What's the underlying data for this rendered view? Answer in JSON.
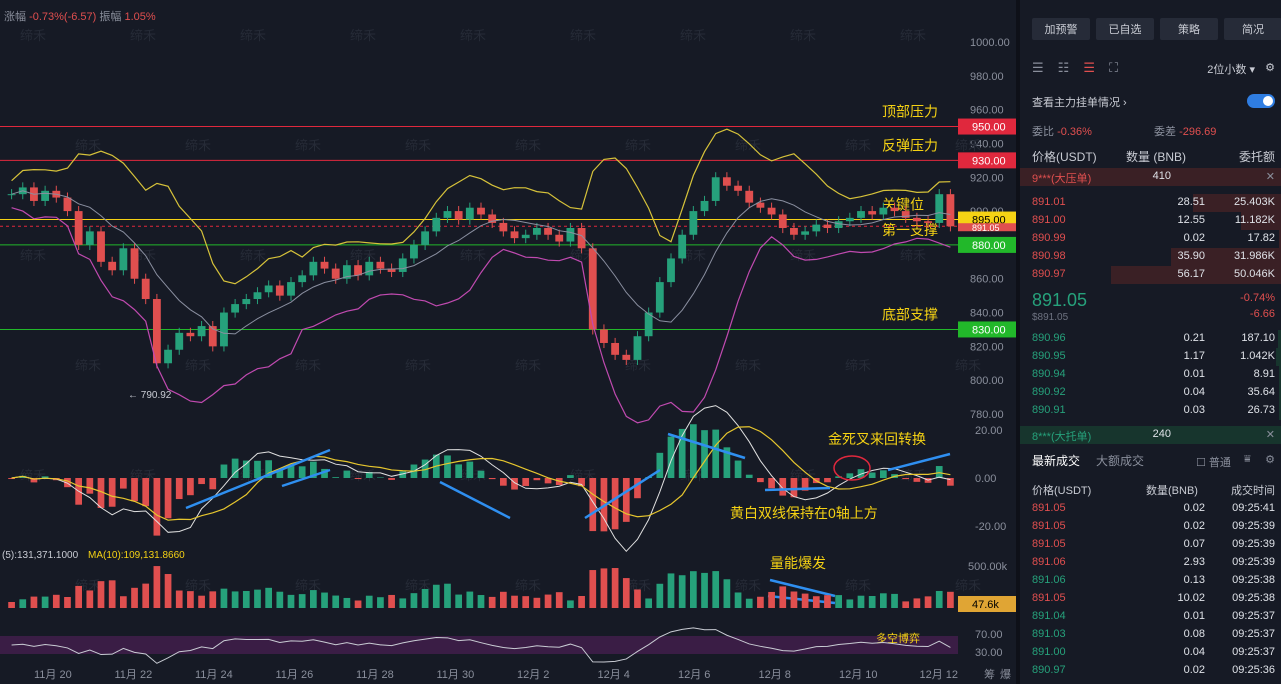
{
  "header": {
    "change_label": "涨幅",
    "change_value": "-0.73%(-6.57)",
    "amplitude_label": "振幅",
    "amplitude_value": "1.05%"
  },
  "watermark": "缔禾",
  "y_ticks": [
    "1000.00",
    "980.00",
    "960.00",
    "940.00",
    "920.00",
    "900.00",
    "880.00",
    "860.00",
    "840.00",
    "820.00",
    "800.00",
    "780.00"
  ],
  "price_levels": [
    {
      "label": "950.00",
      "annotation": "顶部压力",
      "color": "#e0283d",
      "value": 950
    },
    {
      "label": "930.00",
      "annotation": "反弹压力",
      "color": "#e0283d",
      "value": 930
    },
    {
      "label": "895.00",
      "annotation": "关键位",
      "color": "#f5d214",
      "value": 895
    },
    {
      "label": "880.00",
      "annotation": "第一支撑",
      "color": "#22b82a",
      "value": 880
    },
    {
      "label": "830.00",
      "annotation": "底部支撑",
      "color": "#22b82a",
      "value": 830
    }
  ],
  "current_price_label": "891.05",
  "low_marker": "← 790.92",
  "macd_ticks": [
    "20.00",
    "0.00",
    "-20.00"
  ],
  "macd_notes": {
    "cross": "金死叉来回转换",
    "above_zero": "黄白双线保持在0轴上方"
  },
  "volume": {
    "ma5": "(5):131,371.1000",
    "ma10": "MA(10):109,131.8660",
    "tick": "500.00k",
    "current": "47.6k",
    "note": "量能爆发"
  },
  "rsi": {
    "ticks": [
      "70.00",
      "30.00"
    ],
    "note": "多空博弈"
  },
  "x_labels": [
    "11月 20",
    "11月 22",
    "11月 24",
    "11月 26",
    "11月 28",
    "11月 30",
    "12月 2",
    "12月 4",
    "12月 6",
    "12月 8",
    "12月 10",
    "12月 12"
  ],
  "bottom_right": [
    "筹",
    "爆"
  ],
  "chart_data": {
    "type": "candlestick",
    "title": "",
    "ylim": [
      780,
      1000
    ],
    "series": [
      {
        "name": "price",
        "values": [
          910,
          914,
          906,
          912,
          908,
          900,
          880,
          888,
          870,
          865,
          878,
          860,
          848,
          810,
          818,
          828,
          826,
          832,
          820,
          840,
          845,
          848,
          852,
          856,
          850,
          858,
          862,
          870,
          866,
          860,
          868,
          862,
          870,
          866,
          864,
          872,
          880,
          888,
          896,
          900,
          895,
          902,
          898,
          893,
          888,
          884,
          886,
          890,
          886,
          882,
          890,
          878,
          830,
          822,
          815,
          812,
          826,
          840,
          858,
          872,
          886,
          900,
          906,
          920,
          915,
          912,
          905,
          902,
          898,
          890,
          886,
          888,
          892,
          890,
          894,
          896,
          900,
          898,
          902,
          900,
          896,
          894,
          893,
          910,
          891
        ]
      }
    ]
  },
  "side": {
    "buttons": [
      "加预警",
      "已自选",
      "策略",
      "简况"
    ],
    "decimals": "2位小数 ▾",
    "mm_title": "查看主力挂单情况",
    "wb_label": "委比",
    "wb_value": "-0.36%",
    "wc_label": "委差",
    "wc_value": "-296.69",
    "ob_cols": [
      "价格(USDT)",
      "数量 (BNB)",
      "委托额"
    ],
    "ask_big": {
      "label": "9***(大压单)",
      "qty": "410"
    },
    "asks": [
      [
        "891.01",
        "28.51",
        "25.403K"
      ],
      [
        "891.00",
        "12.55",
        "11.182K"
      ],
      [
        "890.99",
        "0.02",
        "17.82"
      ],
      [
        "890.98",
        "35.90",
        "31.986K"
      ],
      [
        "890.97",
        "56.17",
        "50.046K"
      ]
    ],
    "last_price": "891.05",
    "last_sub": "$891.05",
    "last_pct": "-0.74%",
    "last_chg": "-6.66",
    "bids": [
      [
        "890.96",
        "0.21",
        "187.10"
      ],
      [
        "890.95",
        "1.17",
        "1.042K"
      ],
      [
        "890.94",
        "0.01",
        "8.91"
      ],
      [
        "890.92",
        "0.04",
        "35.64"
      ],
      [
        "890.91",
        "0.03",
        "26.73"
      ]
    ],
    "bid_big": {
      "label": "8***(大托单)",
      "qty": "240"
    },
    "trade_tabs": [
      "最新成交",
      "大额成交"
    ],
    "trade_opt": "普通",
    "trade_cols": [
      "价格(USDT)",
      "数量(BNB)",
      "成交时间"
    ],
    "trades": [
      [
        "891.05",
        "0.02",
        "09:25:41",
        "r"
      ],
      [
        "891.05",
        "0.02",
        "09:25:39",
        "r"
      ],
      [
        "891.05",
        "0.07",
        "09:25:39",
        "r"
      ],
      [
        "891.06",
        "2.93",
        "09:25:39",
        "r"
      ],
      [
        "891.06",
        "0.13",
        "09:25:38",
        "g"
      ],
      [
        "891.05",
        "10.02",
        "09:25:38",
        "r"
      ],
      [
        "891.04",
        "0.01",
        "09:25:37",
        "g"
      ],
      [
        "891.03",
        "0.08",
        "09:25:37",
        "g"
      ],
      [
        "891.00",
        "0.04",
        "09:25:37",
        "g"
      ],
      [
        "890.97",
        "0.02",
        "09:25:36",
        "g"
      ]
    ]
  }
}
